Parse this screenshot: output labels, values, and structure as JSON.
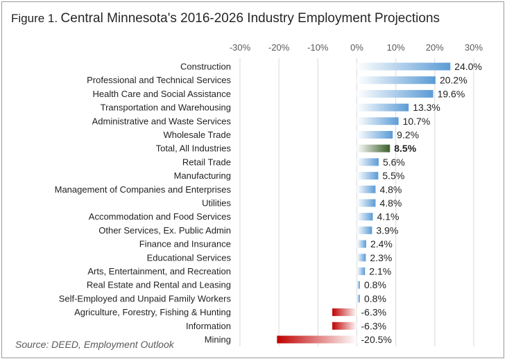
{
  "title": {
    "figure": "Figure 1.",
    "text": "Central Minnesota's 2016-2026 Industry Employment Projections"
  },
  "source": "Source: DEED, Employment Outlook",
  "colors": {
    "positive": "#5b9bd5",
    "negative": "#c00000",
    "total": "#3a5f2a",
    "grid": "#d9d9d9",
    "axis_text": "#595959",
    "label_text": "#1f1f1f"
  },
  "chart_data": {
    "type": "bar",
    "orientation": "horizontal",
    "xlim": [
      -30,
      30
    ],
    "xticks": [
      "-30%",
      "-20%",
      "-10%",
      "0%",
      "10%",
      "20%",
      "30%"
    ],
    "tick_values": [
      -30,
      -20,
      -10,
      0,
      10,
      20,
      30
    ],
    "grid": true,
    "axis_position": "top",
    "highlight_category": "Total, All Industries",
    "categories": [
      "Construction",
      "Professional and Technical Services",
      "Health Care and Social Assistance",
      "Transportation and Warehousing",
      "Administrative and Waste Services",
      "Wholesale Trade",
      "Total, All Industries",
      "Retail Trade",
      "Manufacturing",
      "Management of Companies and Enterprises",
      "Utilities",
      "Accommodation and Food Services",
      "Other Services, Ex. Public Admin",
      "Finance and Insurance",
      "Educational Services",
      "Arts, Entertainment, and Recreation",
      "Real Estate and Rental and Leasing",
      "Self-Employed and Unpaid Family Workers",
      "Agriculture, Forestry, Fishing & Hunting",
      "Information",
      "Mining"
    ],
    "values": [
      24.0,
      20.2,
      19.6,
      13.3,
      10.7,
      9.2,
      8.5,
      5.6,
      5.5,
      4.8,
      4.8,
      4.1,
      3.9,
      2.4,
      2.3,
      2.1,
      0.8,
      0.8,
      -6.3,
      -6.3,
      -20.5
    ],
    "data_labels": [
      "24.0%",
      "20.2%",
      "19.6%",
      "13.3%",
      "10.7%",
      "9.2%",
      "8.5%",
      "5.6%",
      "5.5%",
      "4.8%",
      "4.8%",
      "4.1%",
      "3.9%",
      "2.4%",
      "2.3%",
      "2.1%",
      "0.8%",
      "0.8%",
      "-6.3%",
      "-6.3%",
      "-20.5%"
    ]
  }
}
